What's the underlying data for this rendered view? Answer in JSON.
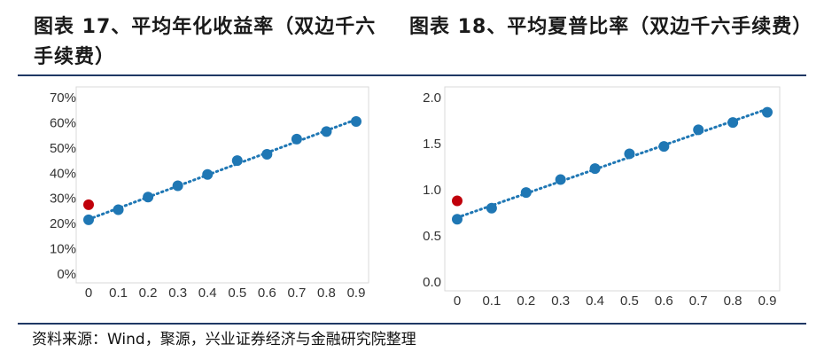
{
  "titles": {
    "left": "图表 17、平均年化收益率（双边千六手续费）",
    "right": "图表 18、平均夏普比率（双边千六手续费）"
  },
  "source": "资料来源：Wind，聚源，兴业证券经济与金融研究院整理",
  "colors": {
    "points": "#1f77b4",
    "highlight": "#c0000b",
    "trend": "#1f77b4",
    "rule": "#1f3864"
  },
  "chart_data": [
    {
      "type": "scatter",
      "title": "图表 17、平均年化收益率（双边千六手续费）",
      "x_ticks": [
        "0",
        "0.1",
        "0.2",
        "0.3",
        "0.4",
        "0.5",
        "0.6",
        "0.7",
        "0.8",
        "0.9"
      ],
      "y_ticks": [
        "0%",
        "10%",
        "20%",
        "30%",
        "40%",
        "50%",
        "60%",
        "70%"
      ],
      "xlim": [
        0,
        0.9
      ],
      "ylim": [
        0,
        0.7
      ],
      "series": [
        {
          "x": [
            0,
            0.1,
            0.2,
            0.3,
            0.4,
            0.5,
            0.6,
            0.7,
            0.8,
            0.9
          ],
          "y": [
            0.215,
            0.255,
            0.305,
            0.35,
            0.395,
            0.45,
            0.475,
            0.535,
            0.565,
            0.605
          ]
        },
        {
          "x": [
            0
          ],
          "y": [
            0.275
          ]
        }
      ],
      "trendline": {
        "type": "linear",
        "style": "dotted"
      },
      "grid": false
    },
    {
      "type": "scatter",
      "title": "图表 18、平均夏普比率（双边千六手续费）",
      "x_ticks": [
        "0",
        "0.1",
        "0.2",
        "0.3",
        "0.4",
        "0.5",
        "0.6",
        "0.7",
        "0.8",
        "0.9"
      ],
      "y_ticks": [
        "0.0",
        "0.5",
        "1.0",
        "1.5",
        "2.0"
      ],
      "xlim": [
        0,
        0.9
      ],
      "ylim": [
        0,
        2.0
      ],
      "series": [
        {
          "x": [
            0,
            0.1,
            0.2,
            0.3,
            0.4,
            0.5,
            0.6,
            0.7,
            0.8,
            0.9
          ],
          "y": [
            0.68,
            0.8,
            0.97,
            1.11,
            1.23,
            1.39,
            1.47,
            1.65,
            1.73,
            1.84
          ]
        },
        {
          "x": [
            0
          ],
          "y": [
            0.88
          ]
        }
      ],
      "trendline": {
        "type": "linear",
        "style": "dotted"
      },
      "grid": false
    }
  ]
}
